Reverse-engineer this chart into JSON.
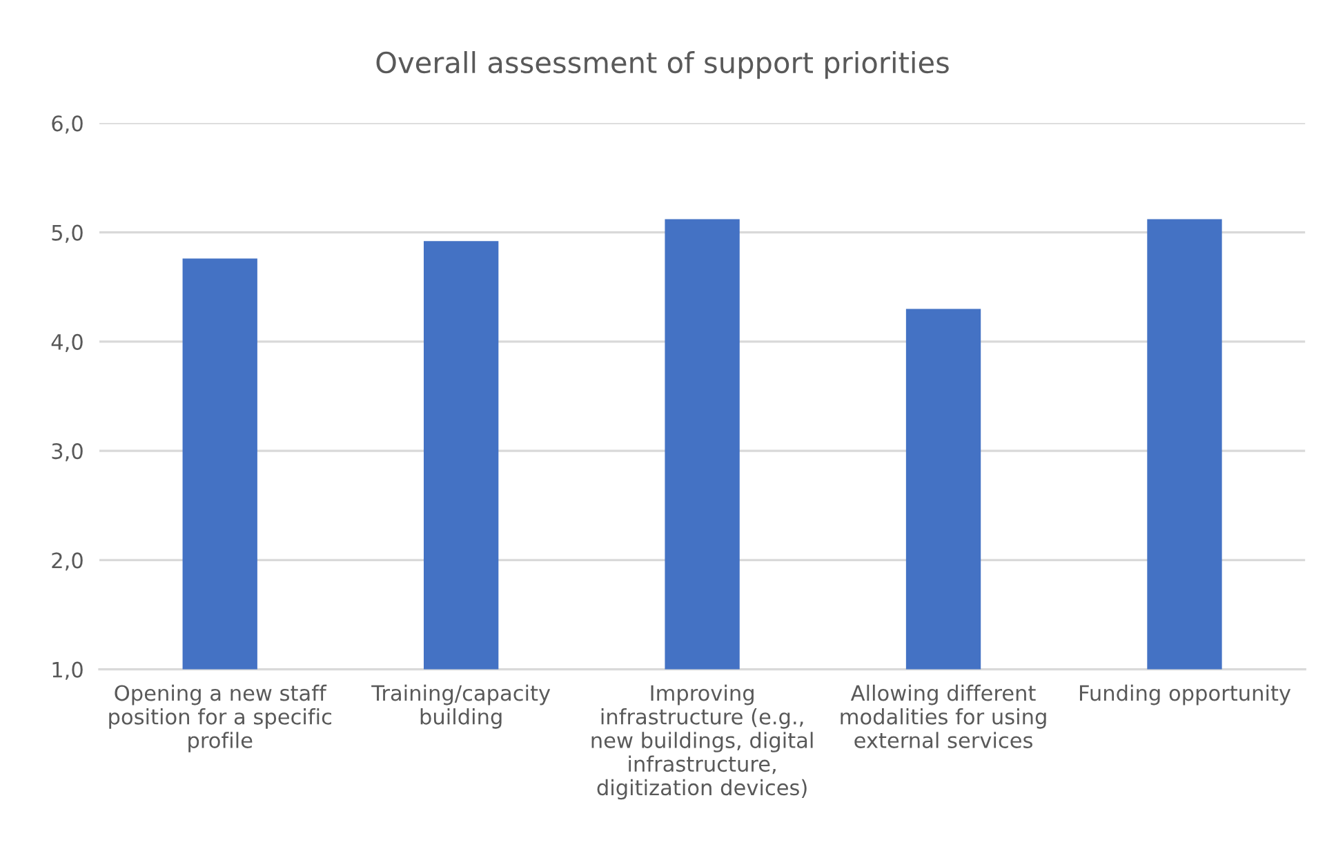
{
  "chart_data": {
    "type": "bar",
    "title": "Overall assessment of support priorities",
    "categories": [
      "Opening a new staff\nposition for a specific\nprofile",
      "Training/capacity\nbuilding",
      "Improving\ninfrastructure (e.g.,\nnew buildings, digital\ninfrastructure,\ndigitization devices)",
      "Allowing different\nmodalities for using\nexternal services",
      "Funding opportunity"
    ],
    "values": [
      4.76,
      4.92,
      5.12,
      4.3,
      5.12
    ],
    "color": "#4472c4",
    "ylim": [
      1,
      6
    ],
    "yticks": [
      {
        "value": 1,
        "label": "1,0"
      },
      {
        "value": 2,
        "label": "2,0"
      },
      {
        "value": 3,
        "label": "3,0"
      },
      {
        "value": 4,
        "label": "4,0"
      },
      {
        "value": 5,
        "label": "5,0"
      },
      {
        "value": 6,
        "label": "6,0"
      }
    ],
    "grid": "y"
  }
}
